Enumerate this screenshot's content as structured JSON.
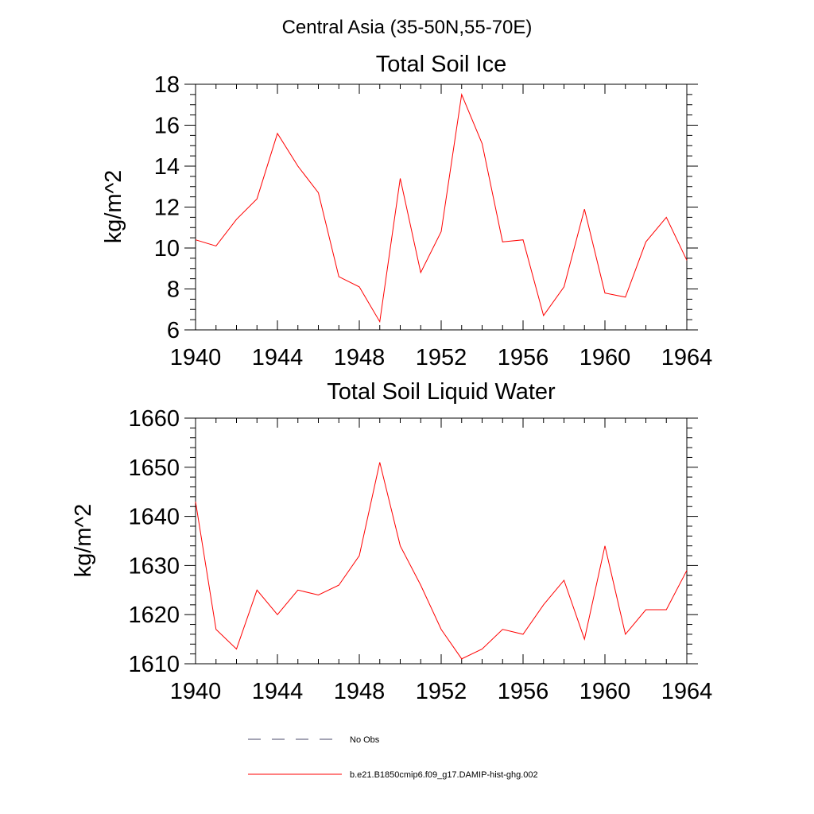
{
  "figure_title": "Central Asia (35-50N,55-70E)",
  "chart_data": [
    {
      "type": "line",
      "title": "Total Soil Ice",
      "xlabel": "",
      "ylabel": "kg/m^2",
      "xlim": [
        1940,
        1964
      ],
      "ylim": [
        6,
        18
      ],
      "x_ticks": [
        1940,
        1944,
        1948,
        1952,
        1956,
        1960,
        1964
      ],
      "y_ticks": [
        6,
        8,
        10,
        12,
        14,
        16,
        18
      ],
      "y_minor_step": 0.5,
      "grid": false,
      "x": [
        1940,
        1941,
        1942,
        1943,
        1944,
        1945,
        1946,
        1947,
        1948,
        1949,
        1950,
        1951,
        1952,
        1953,
        1954,
        1955,
        1956,
        1957,
        1958,
        1959,
        1960,
        1961,
        1962,
        1963,
        1964
      ],
      "series": [
        {
          "name": "b.e21.B1850cmip6.f09_g17.DAMIP-hist-ghg.002",
          "color": "#ff0000",
          "values": [
            10.4,
            10.1,
            11.4,
            12.4,
            15.6,
            14.0,
            12.7,
            8.6,
            8.1,
            6.4,
            13.4,
            8.8,
            10.8,
            17.5,
            15.1,
            10.3,
            10.4,
            6.7,
            8.1,
            11.9,
            7.8,
            7.6,
            10.3,
            11.5,
            9.4
          ]
        }
      ]
    },
    {
      "type": "line",
      "title": "Total Soil Liquid Water",
      "xlabel": "",
      "ylabel": "kg/m^2",
      "xlim": [
        1940,
        1964
      ],
      "ylim": [
        1610,
        1660
      ],
      "x_ticks": [
        1940,
        1944,
        1948,
        1952,
        1956,
        1960,
        1964
      ],
      "y_ticks": [
        1610,
        1620,
        1630,
        1640,
        1650,
        1660
      ],
      "y_minor_step": 2,
      "grid": false,
      "x": [
        1940,
        1941,
        1942,
        1943,
        1944,
        1945,
        1946,
        1947,
        1948,
        1949,
        1950,
        1951,
        1952,
        1953,
        1954,
        1955,
        1956,
        1957,
        1958,
        1959,
        1960,
        1961,
        1962,
        1963,
        1964
      ],
      "series": [
        {
          "name": "b.e21.B1850cmip6.f09_g17.DAMIP-hist-ghg.002",
          "color": "#ff0000",
          "values": [
            1643,
            1617,
            1613,
            1625,
            1620,
            1625,
            1624,
            1626,
            1632,
            1651,
            1634,
            1626,
            1617,
            1611,
            1613,
            1617,
            1616,
            1622,
            1627,
            1615,
            1634,
            1616,
            1621,
            1621,
            1629
          ]
        }
      ]
    }
  ],
  "legend": {
    "placement": "bottom-center",
    "items": [
      {
        "label": "No Obs",
        "style": "dashed",
        "color": "#4a4a6a"
      },
      {
        "label": "b.e21.B1850cmip6.f09_g17.DAMIP-hist-ghg.002",
        "style": "solid",
        "color": "#ff0000"
      }
    ]
  }
}
